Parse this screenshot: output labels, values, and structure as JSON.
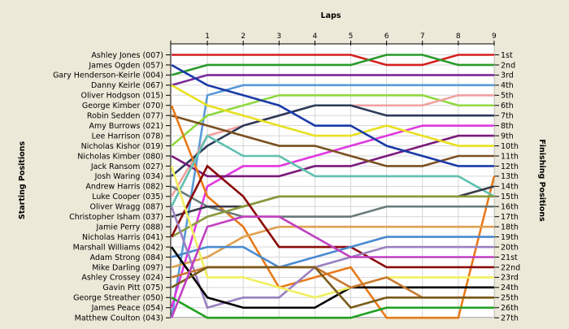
{
  "chart_data": {
    "type": "line",
    "title": "Laps",
    "ylabel_left": "Starting Positions",
    "ylabel_right": "Finishing Positions",
    "x": [
      0,
      1,
      2,
      3,
      4,
      5,
      6,
      7,
      8,
      9
    ],
    "x_tick_labels": [
      "1",
      "2",
      "3",
      "4",
      "5",
      "6",
      "7",
      "8",
      "9"
    ],
    "y_range": [
      1,
      27
    ],
    "grid": true,
    "drivers": [
      "Ashley Jones (007)",
      "James Ogden (057)",
      "Gary Henderson-Keirle (004)",
      "Danny Keirle (067)",
      "Oliver Hodgson (015)",
      "George Kimber (070)",
      "Robin Sedden (077)",
      "Amy Burrows (021)",
      "Lee Harrison (078)",
      "Nicholas Kishor (019)",
      "Nicholas Kimber (080)",
      "Jack Ransom (027)",
      "Josh Waring (034)",
      "Andrew Harris (082)",
      "Luke Cooper (035)",
      "Oliver Wragg (087)",
      "Christopher Isham (037)",
      "Jamie Perry (088)",
      "Nicholas Harris (041)",
      "Marshall Williams (042)",
      "Adam Strong (084)",
      "Mike Darling (097)",
      "Ashley Crossey (024)",
      "Gavin Pitt (075)",
      "George Streather (050)",
      "James Peace (054)",
      "Matthew Coulton (043)"
    ],
    "finishing_labels": [
      "1st",
      "2nd",
      "3rd",
      "4th",
      "5th",
      "6th",
      "7th",
      "8th",
      "9th",
      "10th",
      "11th",
      "12th",
      "13th",
      "14th",
      "15th",
      "16th",
      "17th",
      "18th",
      "19th",
      "20th",
      "21st",
      "22nd",
      "23rd",
      "24th",
      "25th",
      "26th",
      "27th"
    ],
    "series": [
      {
        "color": "#d42020",
        "values": [
          1,
          1,
          1,
          1,
          1,
          1,
          2,
          2,
          1,
          1
        ]
      },
      {
        "color": "#2a9a2a",
        "values": [
          3,
          2,
          2,
          2,
          2,
          2,
          1,
          1,
          2,
          2
        ]
      },
      {
        "color": "#7a2a9a",
        "values": [
          4,
          3,
          3,
          3,
          3,
          3,
          3,
          3,
          3,
          3
        ]
      },
      {
        "color": "#5a9ad8",
        "values": [
          27,
          5,
          4,
          4,
          4,
          4,
          4,
          4,
          4,
          4
        ]
      },
      {
        "color": "#90d840",
        "values": [
          10,
          7,
          6,
          5,
          5,
          5,
          5,
          5,
          6,
          6
        ]
      },
      {
        "color": "#f2a0a0",
        "values": [
          15,
          9,
          8,
          7,
          6,
          6,
          6,
          6,
          5,
          5
        ]
      },
      {
        "color": "#2a3a5a",
        "values": [
          13,
          10,
          8,
          7,
          6,
          6,
          7,
          7,
          7,
          7
        ]
      },
      {
        "color": "#e038e0",
        "values": [
          26,
          14,
          12,
          12,
          11,
          10,
          9,
          8,
          8,
          8
        ]
      },
      {
        "color": "#7a1a7a",
        "values": [
          11,
          13,
          13,
          13,
          12,
          12,
          11,
          10,
          9,
          9
        ]
      },
      {
        "color": "#e8e020",
        "values": [
          4,
          6,
          7,
          8,
          9,
          9,
          8,
          9,
          10,
          10
        ]
      },
      {
        "color": "#7a5020",
        "values": [
          7,
          8,
          9,
          10,
          10,
          11,
          12,
          12,
          11,
          11
        ]
      },
      {
        "color": "#1a3aa8",
        "values": [
          2,
          4,
          5,
          6,
          8,
          8,
          10,
          11,
          12,
          12
        ]
      },
      {
        "color": "#e87a1a",
        "values": [
          6,
          15,
          18,
          24,
          23,
          22,
          27,
          27,
          27,
          13
        ]
      },
      {
        "color": "#6a7a7a",
        "values": [
          14,
          16,
          17,
          17,
          17,
          17,
          16,
          16,
          16,
          16
        ]
      },
      {
        "color": "#60c0b0",
        "values": [
          16,
          9,
          11,
          11,
          13,
          13,
          13,
          13,
          13,
          15
        ]
      },
      {
        "color": "#3a3a4a",
        "values": [
          17,
          16,
          16,
          15,
          15,
          15,
          15,
          15,
          15,
          14
        ]
      },
      {
        "color": "#8a9a3a",
        "values": [
          19,
          17,
          16,
          15,
          15,
          15,
          15,
          15,
          15,
          15
        ]
      },
      {
        "color": "#e0a050",
        "values": [
          22,
          21,
          19,
          18,
          18,
          18,
          18,
          18,
          18,
          18
        ]
      },
      {
        "color": "#8a0a0a",
        "values": [
          19,
          12,
          15,
          20,
          20,
          20,
          22,
          22,
          22,
          22
        ]
      },
      {
        "color": "#4a8ad0",
        "values": [
          21,
          20,
          20,
          22,
          21,
          20,
          19,
          19,
          19,
          19
        ]
      },
      {
        "color": "#9a80c0",
        "values": [
          16,
          26,
          25,
          25,
          22,
          21,
          20,
          20,
          20,
          20
        ]
      },
      {
        "color": "#000000",
        "values": [
          20,
          25,
          26,
          26,
          26,
          24,
          24,
          24,
          24,
          24
        ]
      },
      {
        "color": "#f0f060",
        "values": [
          12,
          23,
          23,
          24,
          25,
          24,
          23,
          23,
          23,
          23
        ]
      },
      {
        "color": "#c87830",
        "values": [
          23,
          22,
          22,
          22,
          22,
          24,
          23,
          25,
          25,
          25
        ]
      },
      {
        "color": "#7a5a1a",
        "values": [
          24,
          22,
          22,
          22,
          22,
          26,
          25,
          25,
          25,
          25
        ]
      },
      {
        "color": "#20a020",
        "values": [
          25,
          27,
          27,
          27,
          27,
          27,
          26,
          26,
          26,
          26
        ]
      },
      {
        "color": "#c040c0",
        "values": [
          27,
          18,
          17,
          17,
          19,
          21,
          21,
          21,
          21,
          21
        ]
      }
    ]
  }
}
